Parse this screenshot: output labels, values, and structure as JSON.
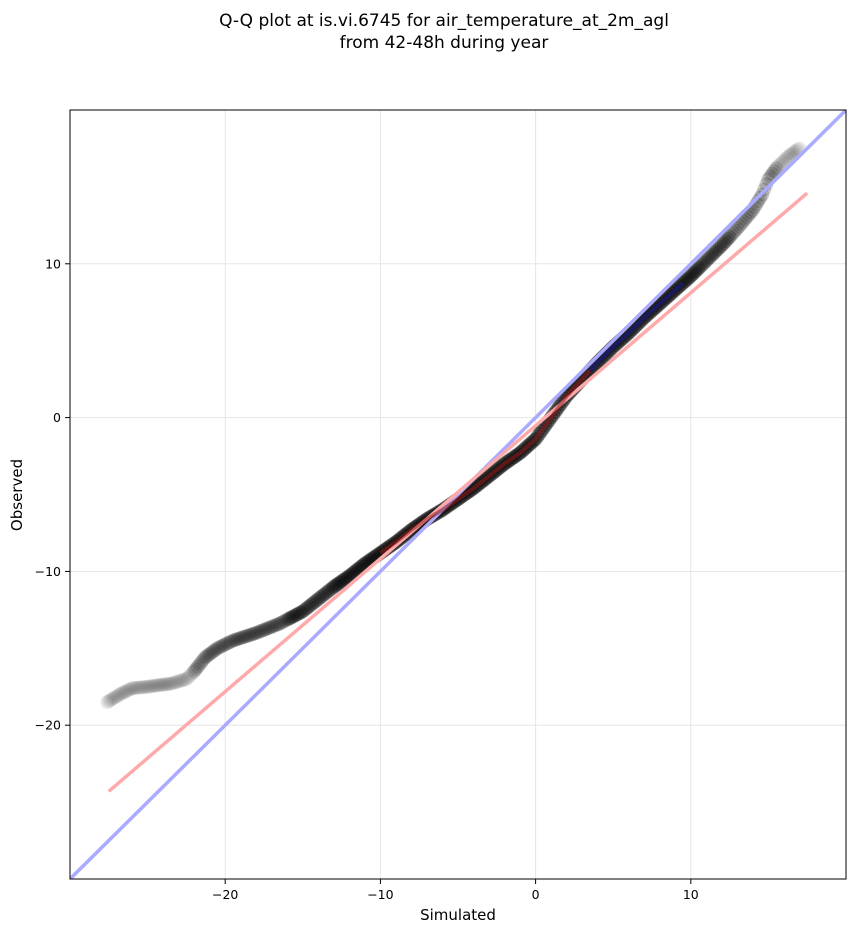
{
  "chart_data": {
    "type": "scatter",
    "title": "Q-Q plot at is.vi.6745 for air_temperature_at_2m_agl",
    "subtitle": "from 42-48h during year",
    "xlabel": "Simulated",
    "ylabel": "Observed",
    "xlim": [
      -30,
      20
    ],
    "ylim": [
      -30,
      20
    ],
    "xticks": [
      -20,
      -10,
      0,
      10
    ],
    "yticks": [
      -20,
      -10,
      0,
      10
    ],
    "xtick_labels": [
      "−20",
      "−10",
      "0",
      "10"
    ],
    "ytick_labels": [
      "−20",
      "−10",
      "0",
      "10"
    ],
    "grid": true,
    "legend": "none",
    "colors": {
      "points": "#000000",
      "identity_line": "#aaaaff",
      "fit_line": "#ffaaaa",
      "central_blue": "#1a1a99",
      "central_red": "#991a1a"
    },
    "identity_line": {
      "x": [
        -30,
        20
      ],
      "y": [
        -30,
        20
      ]
    },
    "fit_line": {
      "x": [
        -27.5,
        17.5
      ],
      "y": [
        -24.3,
        14.6
      ]
    },
    "quantile_curve": {
      "x": [
        -27.6,
        -26.8,
        -26.0,
        -25.0,
        -24.3,
        -23.5,
        -22.5,
        -22.0,
        -21.3,
        -20.5,
        -19.5,
        -18.0,
        -16.5,
        -15.0,
        -14.0,
        -13.0,
        -12.0,
        -11.0,
        -10.0,
        -9.0,
        -8.0,
        -7.0,
        -6.0,
        -5.0,
        -4.0,
        -3.0,
        -2.0,
        -1.0,
        0.0,
        1.0,
        2.0,
        3.0,
        4.0,
        5.0,
        6.0,
        7.0,
        8.0,
        9.0,
        10.0,
        11.0,
        12.0,
        13.0,
        14.0,
        14.6,
        15.0,
        15.5,
        16.3,
        17.0
      ],
      "y": [
        -18.5,
        -18.0,
        -17.6,
        -17.5,
        -17.4,
        -17.3,
        -17.0,
        -16.5,
        -15.6,
        -15.0,
        -14.5,
        -14.0,
        -13.4,
        -12.6,
        -11.8,
        -11.0,
        -10.3,
        -9.5,
        -8.8,
        -8.1,
        -7.3,
        -6.6,
        -6.0,
        -5.3,
        -4.6,
        -3.8,
        -3.0,
        -2.3,
        -1.4,
        0.0,
        1.4,
        2.5,
        3.6,
        4.6,
        5.5,
        6.5,
        7.4,
        8.3,
        9.2,
        10.2,
        11.2,
        12.3,
        13.5,
        14.5,
        15.5,
        16.2,
        17.0,
        17.5
      ]
    }
  }
}
